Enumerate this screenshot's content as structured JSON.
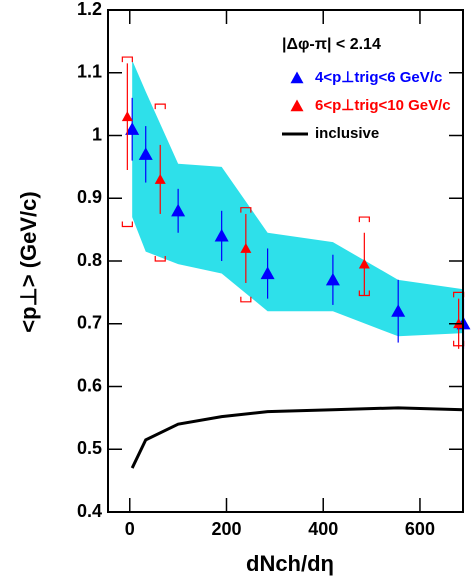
{
  "chart_data": {
    "type": "errorbar",
    "x_label": "dNch/dη",
    "y_label": "<p⊥>   (GeV/c)",
    "legend_title": "|Δφ-π| < 2.14",
    "xlim": [
      -45,
      689
    ],
    "ylim": [
      0.4,
      1.2
    ],
    "xticks": [
      0,
      200,
      400,
      600
    ],
    "yticks": [
      0.4,
      0.5,
      0.6,
      0.7,
      0.8,
      0.9,
      1,
      1.1,
      1.2
    ],
    "series": [
      {
        "kind": "band",
        "color": "#2ee0ea",
        "x": [
          5,
          33,
          100,
          190,
          285,
          420,
          555,
          690
        ],
        "lower": [
          0.87,
          0.815,
          0.795,
          0.78,
          0.72,
          0.72,
          0.68,
          0.685
        ],
        "upper": [
          1.12,
          1.07,
          0.955,
          0.95,
          0.845,
          0.83,
          0.77,
          0.755
        ]
      },
      {
        "kind": "points",
        "name": "4<p⊥trig<6 GeV/c",
        "color": "#0000ff",
        "x": [
          5,
          33,
          100,
          190,
          285,
          420,
          555,
          690
        ],
        "values": [
          1.01,
          0.97,
          0.88,
          0.84,
          0.78,
          0.77,
          0.72,
          0.7
        ],
        "errors": [
          0.05,
          0.045,
          0.035,
          0.04,
          0.04,
          0.04,
          0.05,
          0.04
        ]
      },
      {
        "kind": "points",
        "name": "6<p⊥trig<10 GeV/c",
        "color": "#ff0000",
        "x": [
          -5,
          63,
          240,
          485,
          680
        ],
        "values": [
          1.03,
          0.93,
          0.82,
          0.795,
          0.7
        ],
        "errors": [
          0.085,
          0.055,
          0.055,
          0.05,
          0.04
        ],
        "sys_lo": [
          0.855,
          0.8,
          0.735,
          0.745,
          0.665
        ],
        "sys_hi": [
          1.125,
          1.05,
          0.885,
          0.87,
          0.75
        ]
      },
      {
        "kind": "line",
        "name": "inclusive",
        "color": "#000000",
        "x": [
          5,
          33,
          100,
          190,
          285,
          420,
          555,
          690
        ],
        "values": [
          0.47,
          0.515,
          0.54,
          0.552,
          0.56,
          0.563,
          0.566,
          0.563
        ]
      }
    ]
  }
}
